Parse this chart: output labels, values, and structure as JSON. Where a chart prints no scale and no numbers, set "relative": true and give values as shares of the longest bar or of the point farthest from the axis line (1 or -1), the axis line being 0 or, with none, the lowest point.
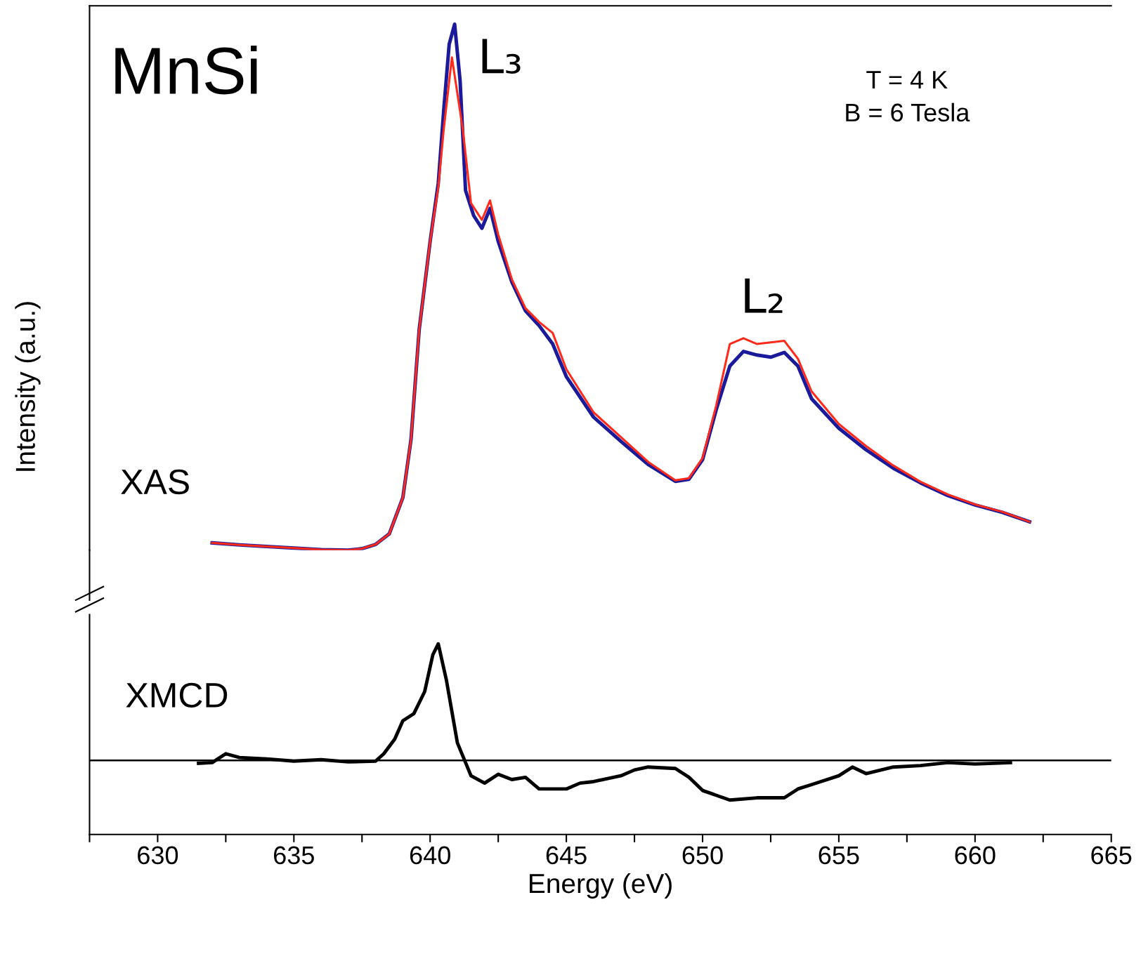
{
  "chart_data": [
    {
      "type": "line",
      "relative": true,
      "ylabel": "Intensity (a.u.)",
      "xlim": [
        627.5,
        665
      ],
      "tick_labels": false,
      "legend": false,
      "grid": false,
      "annotations": [
        "MnSi",
        "T = 4 K\nB = 6 Tesla",
        "XAS",
        "L₃",
        "L₂"
      ],
      "xticks": [
        630,
        635,
        640,
        645,
        650,
        655,
        660,
        665
      ],
      "series": [
        {
          "color": "#1a1a9a",
          "x": [
            632,
            633,
            634,
            635,
            636,
            637,
            637.5,
            638,
            638.5,
            639,
            639.3,
            639.6,
            640,
            640.3,
            640.5,
            640.7,
            640.9,
            641.1,
            641.3,
            641.6,
            641.9,
            642.2,
            642.5,
            643,
            643.5,
            644,
            644.5,
            645,
            646,
            647,
            648,
            649,
            649.5,
            650,
            650.5,
            651,
            651.5,
            652,
            652.5,
            653,
            653.5,
            654,
            655,
            656,
            657,
            658,
            659,
            660,
            661,
            662
          ],
          "values": [
            0.014,
            0.01,
            0.007,
            0.004,
            0.001,
            0,
            0.003,
            0.011,
            0.031,
            0.1,
            0.211,
            0.42,
            0.587,
            0.698,
            0.837,
            0.962,
            1.0,
            0.893,
            0.684,
            0.636,
            0.612,
            0.65,
            0.587,
            0.51,
            0.455,
            0.427,
            0.392,
            0.33,
            0.253,
            0.207,
            0.163,
            0.131,
            0.135,
            0.172,
            0.267,
            0.35,
            0.378,
            0.371,
            0.367,
            0.376,
            0.35,
            0.288,
            0.232,
            0.191,
            0.156,
            0.128,
            0.104,
            0.086,
            0.072,
            0.054
          ]
        },
        {
          "color": "#ff2a1a",
          "x": [
            632,
            633,
            634,
            635,
            636,
            637,
            637.5,
            638,
            638.5,
            639,
            639.3,
            639.6,
            640,
            640.3,
            640.5,
            640.8,
            641.2,
            641.5,
            641.9,
            642.2,
            642.5,
            643,
            643.5,
            644,
            644.5,
            645,
            646,
            647,
            648,
            649,
            649.5,
            650,
            650.5,
            651,
            651.5,
            652,
            652.5,
            653,
            653.5,
            654,
            655,
            656,
            657,
            658,
            659,
            660,
            661,
            662
          ],
          "values": [
            0.014,
            0.01,
            0.007,
            0.004,
            0.001,
            0,
            0.003,
            0.011,
            0.031,
            0.1,
            0.211,
            0.42,
            0.587,
            0.69,
            0.8,
            0.937,
            0.8,
            0.66,
            0.628,
            0.665,
            0.6,
            0.515,
            0.46,
            0.434,
            0.413,
            0.344,
            0.262,
            0.215,
            0.168,
            0.133,
            0.137,
            0.175,
            0.275,
            0.392,
            0.403,
            0.392,
            0.395,
            0.398,
            0.364,
            0.302,
            0.24,
            0.198,
            0.161,
            0.13,
            0.106,
            0.087,
            0.073,
            0.054
          ]
        }
      ]
    },
    {
      "type": "line",
      "relative": true,
      "xlabel": "Energy (eV)",
      "xlim": [
        627.5,
        665
      ],
      "tick_labels": "x",
      "legend": false,
      "grid": false,
      "xticks": [
        630,
        635,
        640,
        645,
        650,
        655,
        660,
        665
      ],
      "annotations": [
        "XMCD"
      ],
      "ref_lines": [
        {
          "axis": "y",
          "value": 0,
          "color": "#000000"
        }
      ],
      "series": [
        {
          "color": "#000000",
          "x": [
            631.5,
            632,
            632.5,
            633,
            634,
            635,
            636,
            637,
            638,
            638.3,
            638.7,
            639,
            639.4,
            639.8,
            640.1,
            640.3,
            640.6,
            641,
            641.5,
            642,
            642.5,
            643,
            643.5,
            644,
            645,
            645.5,
            646,
            647,
            647.5,
            648,
            649,
            649.5,
            650,
            651,
            652,
            653,
            653.5,
            654,
            655,
            655.5,
            656,
            657,
            658,
            659,
            660,
            661.3
          ],
          "values": [
            -0.025,
            -0.019,
            0.057,
            0.025,
            0.013,
            -0.006,
            0.006,
            -0.013,
            -0.006,
            0.057,
            0.182,
            0.34,
            0.4,
            0.59,
            0.906,
            1,
            0.686,
            0.151,
            -0.132,
            -0.195,
            -0.119,
            -0.164,
            -0.145,
            -0.245,
            -0.245,
            -0.195,
            -0.182,
            -0.132,
            -0.082,
            -0.057,
            -0.069,
            -0.145,
            -0.258,
            -0.34,
            -0.321,
            -0.321,
            -0.245,
            -0.208,
            -0.132,
            -0.057,
            -0.113,
            -0.057,
            -0.044,
            -0.019,
            -0.031,
            -0.019
          ]
        }
      ]
    }
  ]
}
